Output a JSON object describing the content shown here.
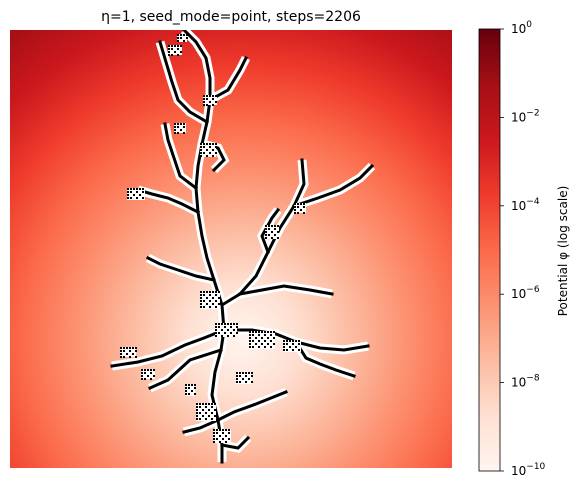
{
  "chart_data": {
    "type": "heatmap",
    "title": "η=1, seed_mode=point, steps=2206",
    "colormap": "Reds",
    "colorbar": {
      "label": "Potential φ (log scale)",
      "scale": "log",
      "range": [
        1e-10,
        1
      ],
      "ticks": [
        {
          "value": 1,
          "base": "10",
          "exp": "0"
        },
        {
          "value": 0.01,
          "base": "10",
          "exp": "−2"
        },
        {
          "value": 0.0001,
          "base": "10",
          "exp": "−4"
        },
        {
          "value": 1e-06,
          "base": "10",
          "exp": "−6"
        },
        {
          "value": 1e-08,
          "base": "10",
          "exp": "−8"
        },
        {
          "value": 1e-10,
          "base": "10",
          "exp": "−10"
        }
      ],
      "colors": [
        "#fff5f0",
        "#fee0d2",
        "#fcbba1",
        "#fc9272",
        "#fb6a4a",
        "#ef3b2c",
        "#cb181d",
        "#a50f15",
        "#67000d"
      ]
    },
    "cluster": {
      "color": "#000000",
      "seed_mode": "point",
      "eta": 1,
      "steps": 2206,
      "branches": [
        [
          [
            222,
            462
          ],
          [
            222,
            445
          ],
          [
            218,
            420
          ],
          [
            212,
            395
          ],
          [
            215,
            372
          ],
          [
            221,
            350
          ],
          [
            224,
            330
          ],
          [
            222,
            305
          ],
          [
            214,
            280
          ],
          [
            207,
            258
          ],
          [
            202,
            236
          ],
          [
            198,
            212
          ],
          [
            196,
            188
          ],
          [
            198,
            166
          ],
          [
            202,
            144
          ],
          [
            207,
            122
          ],
          [
            210,
            100
          ],
          [
            210,
            78
          ],
          [
            206,
            58
          ],
          [
            196,
            42
          ],
          [
            184,
            30
          ]
        ],
        [
          [
            207,
            122
          ],
          [
            190,
            112
          ],
          [
            178,
            100
          ],
          [
            172,
            82
          ],
          [
            166,
            62
          ],
          [
            160,
            42
          ]
        ],
        [
          [
            210,
            100
          ],
          [
            228,
            90
          ],
          [
            240,
            70
          ],
          [
            246,
            58
          ]
        ],
        [
          [
            202,
            144
          ],
          [
            218,
            148
          ],
          [
            224,
            160
          ],
          [
            214,
            170
          ]
        ],
        [
          [
            198,
            212
          ],
          [
            182,
            204
          ],
          [
            168,
            198
          ],
          [
            152,
            194
          ],
          [
            138,
            190
          ]
        ],
        [
          [
            196,
            188
          ],
          [
            180,
            176
          ],
          [
            168,
            140
          ],
          [
            165,
            124
          ]
        ],
        [
          [
            214,
            280
          ],
          [
            196,
            276
          ],
          [
            178,
            270
          ],
          [
            160,
            264
          ],
          [
            148,
            258
          ]
        ],
        [
          [
            224,
            330
          ],
          [
            204,
            338
          ],
          [
            185,
            345
          ],
          [
            162,
            356
          ],
          [
            138,
            362
          ],
          [
            112,
            366
          ]
        ],
        [
          [
            221,
            350
          ],
          [
            190,
            360
          ],
          [
            168,
            380
          ],
          [
            150,
            388
          ]
        ],
        [
          [
            218,
            420
          ],
          [
            200,
            428
          ],
          [
            184,
            432
          ]
        ],
        [
          [
            222,
            305
          ],
          [
            240,
            294
          ],
          [
            256,
            276
          ],
          [
            268,
            252
          ],
          [
            280,
            228
          ],
          [
            294,
            206
          ],
          [
            304,
            184
          ],
          [
            302,
            160
          ]
        ],
        [
          [
            268,
            252
          ],
          [
            262,
            236
          ],
          [
            272,
            218
          ],
          [
            278,
            210
          ]
        ],
        [
          [
            294,
            206
          ],
          [
            318,
            198
          ],
          [
            340,
            190
          ],
          [
            360,
            178
          ],
          [
            372,
            166
          ]
        ],
        [
          [
            240,
            294
          ],
          [
            262,
            290
          ],
          [
            284,
            286
          ],
          [
            310,
            290
          ],
          [
            332,
            294
          ]
        ],
        [
          [
            224,
            330
          ],
          [
            252,
            330
          ],
          [
            276,
            334
          ],
          [
            296,
            342
          ],
          [
            320,
            348
          ],
          [
            344,
            350
          ],
          [
            368,
            346
          ]
        ],
        [
          [
            296,
            342
          ],
          [
            306,
            358
          ],
          [
            320,
            364
          ],
          [
            336,
            370
          ],
          [
            354,
            376
          ]
        ],
        [
          [
            218,
            420
          ],
          [
            234,
            412
          ],
          [
            256,
            404
          ],
          [
            276,
            396
          ],
          [
            286,
            392
          ]
        ],
        [
          [
            222,
            445
          ],
          [
            238,
            448
          ],
          [
            248,
            438
          ]
        ]
      ],
      "blobs": [
        [
          175,
          50,
          14,
          10
        ],
        [
          182,
          38,
          10,
          8
        ],
        [
          210,
          100,
          14,
          10
        ],
        [
          180,
          128,
          12,
          10
        ],
        [
          208,
          150,
          16,
          14
        ],
        [
          136,
          194,
          18,
          12
        ],
        [
          272,
          232,
          14,
          14
        ],
        [
          300,
          208,
          12,
          10
        ],
        [
          210,
          300,
          20,
          18
        ],
        [
          226,
          330,
          22,
          14
        ],
        [
          262,
          340,
          26,
          18
        ],
        [
          292,
          346,
          18,
          12
        ],
        [
          128,
          352,
          16,
          10
        ],
        [
          148,
          374,
          14,
          10
        ],
        [
          206,
          412,
          20,
          18
        ],
        [
          222,
          436,
          18,
          14
        ],
        [
          244,
          378,
          16,
          12
        ],
        [
          190,
          390,
          10,
          12
        ]
      ]
    }
  }
}
